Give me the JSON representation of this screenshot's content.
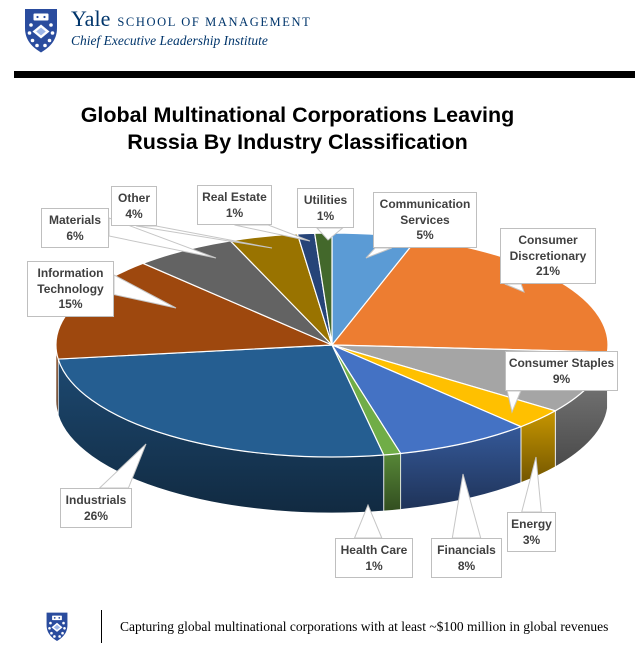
{
  "header": {
    "brand": "Yale",
    "school": "SCHOOL OF MANAGEMENT",
    "institute": "Chief Executive Leadership Institute"
  },
  "title": {
    "line1": "Global Multinational Corporations Leaving",
    "line2": "Russia By Industry Classification"
  },
  "footer": {
    "note": "Capturing global multinational corporations with at least ~$100 million in global revenues"
  },
  "theme": {
    "yale_blue": "#00356B",
    "logo_blue": "#2A4C9E",
    "label_text": "#404040",
    "label_border": "#BFBFBF",
    "divider_bar": "#000000"
  },
  "chart_data": {
    "type": "pie",
    "style": "3d-pie",
    "title": "Global Multinational Corporations Leaving Russia By Industry Classification",
    "start_angle_deg": 0,
    "direction": "clockwise",
    "data_label_format": "{label} {value}%",
    "legend": "none (callout data labels)",
    "slices": [
      {
        "label": "Communication Services",
        "value": 5,
        "color": "#5B9BD5"
      },
      {
        "label": "Consumer Discretionary",
        "value": 21,
        "color": "#ED7D31"
      },
      {
        "label": "Consumer Staples",
        "value": 9,
        "color": "#A5A5A5"
      },
      {
        "label": "Energy",
        "value": 3,
        "color": "#FFC000"
      },
      {
        "label": "Financials",
        "value": 8,
        "color": "#4472C4"
      },
      {
        "label": "Health Care",
        "value": 1,
        "color": "#70AD47"
      },
      {
        "label": "Industrials",
        "value": 26,
        "color": "#255E91"
      },
      {
        "label": "Information Technology",
        "value": 15,
        "color": "#9E480E"
      },
      {
        "label": "Materials",
        "value": 6,
        "color": "#636363"
      },
      {
        "label": "Other",
        "value": 4,
        "color": "#997300"
      },
      {
        "label": "Real Estate",
        "value": 1,
        "color": "#264478"
      },
      {
        "label": "Utilities",
        "value": 1,
        "color": "#43682B"
      }
    ]
  }
}
